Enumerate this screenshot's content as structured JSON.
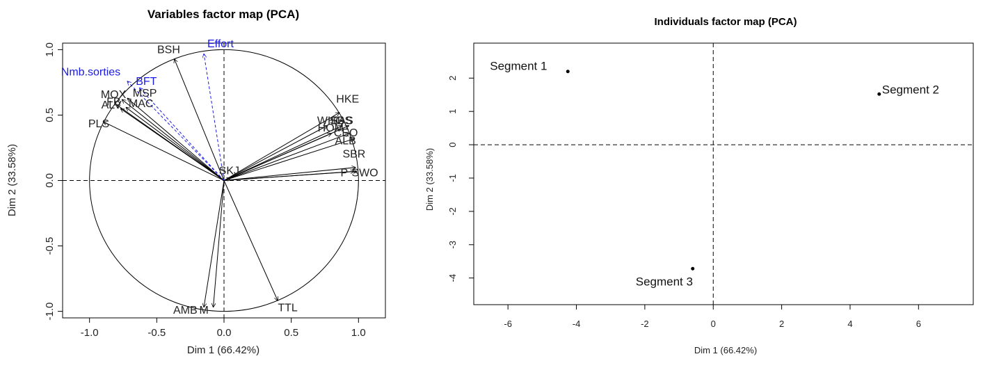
{
  "chart_data": [
    {
      "type": "scatter",
      "subtype": "pca-variables-correlation-circle",
      "title": "Variables factor map (PCA)",
      "xlabel": "Dim 1 (66.42%)",
      "ylabel": "Dim 2 (33.58%)",
      "xlim": [
        -1.2,
        1.2
      ],
      "ylim": [
        -1.05,
        1.05
      ],
      "xticks": [
        "-1.0",
        "-0.5",
        "0.0",
        "0.5",
        "1.0"
      ],
      "yticks": [
        "-1.0",
        "-0.5",
        "0.0",
        "0.5",
        "1.0"
      ],
      "unit_circle": true,
      "grid": false,
      "colors": {
        "active": "#000000",
        "supplementary": "#1a1ae6"
      },
      "series": [
        {
          "style": "active",
          "points": [
            {
              "label": "BSH",
              "x": -0.37,
              "y": 0.93
            },
            {
              "label": "MOX",
              "x": -0.76,
              "y": 0.62
            },
            {
              "label": "MSP",
              "x": -0.72,
              "y": 0.63
            },
            {
              "label": "FB",
              "x": -0.8,
              "y": 0.58
            },
            {
              "label": "ALV",
              "x": -0.77,
              "y": 0.55
            },
            {
              "label": "MAC",
              "x": -0.73,
              "y": 0.56
            },
            {
              "label": "PLS",
              "x": -0.9,
              "y": 0.45
            },
            {
              "label": "HKE",
              "x": 0.86,
              "y": 0.52
            },
            {
              "label": "WHG",
              "x": 0.77,
              "y": 0.42
            },
            {
              "label": "SBS",
              "x": 0.88,
              "y": 0.42
            },
            {
              "label": "EAS",
              "x": 0.93,
              "y": 0.42
            },
            {
              "label": "HOM",
              "x": 0.8,
              "y": 0.36
            },
            {
              "label": "CEO",
              "x": 0.93,
              "y": 0.36
            },
            {
              "label": "ALB",
              "x": 0.97,
              "y": 0.32
            },
            {
              "label": "SBR",
              "x": 0.98,
              "y": 0.1
            },
            {
              "label": "P",
              "x": 0.97,
              "y": 0.07
            },
            {
              "label": "SWO",
              "x": 0.99,
              "y": 0.07
            },
            {
              "label": "SKJ",
              "x": 0.05,
              "y": 0.02
            },
            {
              "label": "TTL",
              "x": 0.4,
              "y": -0.92
            },
            {
              "label": "AMB",
              "x": -0.15,
              "y": -0.97
            },
            {
              "label": "M",
              "x": -0.08,
              "y": -0.97
            }
          ]
        },
        {
          "style": "supplementary",
          "points": [
            {
              "label": "Effort",
              "x": -0.15,
              "y": 0.97
            },
            {
              "label": "Nmb.sorties",
              "x": -0.72,
              "y": 0.76
            },
            {
              "label": "BFT",
              "x": -0.63,
              "y": 0.71
            }
          ]
        }
      ]
    },
    {
      "type": "scatter",
      "subtype": "pca-individuals",
      "title": "Individuals factor map (PCA)",
      "xlabel": "Dim 1 (66.42%)",
      "ylabel": "Dim 2 (33.58%)",
      "xlim": [
        -7,
        7.6
      ],
      "ylim": [
        -4.8,
        3.05
      ],
      "xticks": [
        "-6",
        "-4",
        "-2",
        "0",
        "2",
        "4",
        "6"
      ],
      "yticks": [
        "-4",
        "-3",
        "-2",
        "-1",
        "0",
        "1",
        "2"
      ],
      "grid": false,
      "colors": {
        "points": "#000000"
      },
      "points": [
        {
          "label": "Segment 1",
          "x": -4.25,
          "y": 2.2
        },
        {
          "label": "Segment 2",
          "x": 4.85,
          "y": 1.52
        },
        {
          "label": "Segment 3",
          "x": -0.6,
          "y": -3.72
        }
      ]
    }
  ]
}
